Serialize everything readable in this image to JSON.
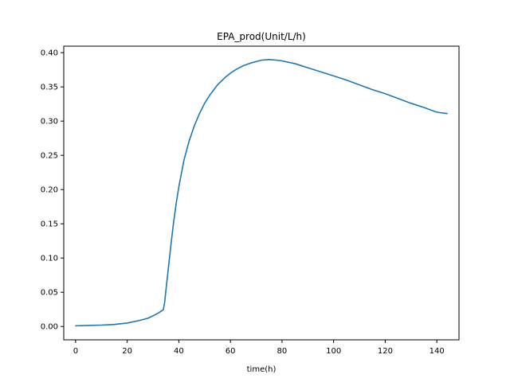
{
  "chart_data": {
    "type": "line",
    "title": "EPA_prod(Unit/L/h)",
    "xlabel": "time(h)",
    "ylabel": "",
    "xlim": [
      -4.6,
      148.6
    ],
    "ylim": [
      -0.0195,
      0.4095
    ],
    "xticks": [
      0,
      20,
      40,
      60,
      80,
      100,
      120,
      140
    ],
    "xtick_labels": [
      "0",
      "20",
      "40",
      "60",
      "80",
      "100",
      "120",
      "140"
    ],
    "yticks": [
      0.0,
      0.05,
      0.1,
      0.15,
      0.2,
      0.25,
      0.3,
      0.35,
      0.4
    ],
    "ytick_labels": [
      "0.00",
      "0.05",
      "0.10",
      "0.15",
      "0.20",
      "0.25",
      "0.30",
      "0.35",
      "0.40"
    ],
    "grid": false,
    "legend": "none",
    "series": [
      {
        "color": "#1f77b4",
        "x": [
          0,
          5,
          10,
          15,
          20,
          25,
          28,
          30,
          32,
          34,
          34.5,
          35,
          36,
          37,
          38,
          39,
          40,
          42,
          44,
          46,
          48,
          50,
          52,
          55,
          58,
          60,
          62,
          65,
          68,
          70,
          72,
          75,
          78,
          80,
          85,
          90,
          95,
          100,
          105,
          110,
          115,
          120,
          125,
          130,
          135,
          140,
          144
        ],
        "y": [
          0.001,
          0.0015,
          0.002,
          0.003,
          0.005,
          0.009,
          0.012,
          0.0155,
          0.0195,
          0.0245,
          0.035,
          0.053,
          0.087,
          0.121,
          0.153,
          0.18,
          0.204,
          0.243,
          0.271,
          0.293,
          0.311,
          0.326,
          0.338,
          0.353,
          0.364,
          0.37,
          0.375,
          0.381,
          0.385,
          0.387,
          0.389,
          0.39,
          0.389,
          0.388,
          0.384,
          0.378,
          0.372,
          0.366,
          0.36,
          0.353,
          0.346,
          0.34,
          0.333,
          0.326,
          0.32,
          0.313,
          0.311
        ]
      }
    ]
  }
}
